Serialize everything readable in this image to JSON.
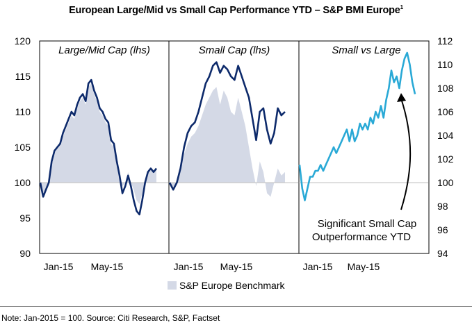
{
  "title": "European Large/Mid vs Small Cap Performance YTD – S&P BMI Europe",
  "title_sup": "1",
  "footnote": "Note: Jan-2015 = 100. Source: Citi Research, S&P, Factset",
  "colors": {
    "dark_line": "#0d2a6b",
    "light_line": "#29a9d6",
    "area": "#d4d9e6",
    "frame": "#000000",
    "baseline": "#bfbfbf"
  },
  "chart_data": [
    {
      "type": "line",
      "title": "Large/Mid Cap (lhs)",
      "xlabel": "",
      "ylabel": "",
      "ylim": [
        90,
        120
      ],
      "yticks": [
        "90",
        "95",
        "100",
        "105",
        "110",
        "115",
        "120"
      ],
      "xticks": [
        "Jan-15",
        "May-15"
      ],
      "series": [
        {
          "name": "Large/Mid Cap",
          "values": [
            100,
            98,
            99,
            100,
            103,
            104.5,
            105,
            105.5,
            107,
            108,
            109,
            110,
            109.5,
            111,
            112,
            112.5,
            111.5,
            114,
            114.5,
            113,
            112,
            110.5,
            110,
            109,
            108.5,
            106,
            105.5,
            103,
            101,
            98.5,
            99.5,
            101,
            99.5,
            97.5,
            96,
            95.5,
            97.5,
            100,
            101.5,
            102,
            101.5,
            102
          ]
        },
        {
          "name": "S&P Europe Benchmark",
          "kind": "area",
          "values": [
            100,
            98.5,
            99,
            100.5,
            102.5,
            104,
            105,
            105.5,
            106.5,
            107.5,
            108.5,
            109.5,
            109,
            110.5,
            111.5,
            112,
            111,
            113.5,
            114,
            112.5,
            111.5,
            110,
            109.5,
            108.5,
            108,
            105.5,
            105,
            102.5,
            101,
            99.5,
            100,
            101.5,
            100,
            99,
            97.5,
            97,
            98.5,
            100.5,
            101.5,
            102,
            101.5,
            102
          ]
        }
      ]
    },
    {
      "type": "line",
      "title": "Small Cap (lhs)",
      "xlabel": "",
      "ylabel": "",
      "ylim": [
        90,
        120
      ],
      "xticks": [
        "Jan-15",
        "May-15"
      ],
      "series": [
        {
          "name": "Small Cap",
          "values": [
            100,
            99,
            100,
            102,
            105,
            107,
            108,
            108.5,
            110,
            112,
            114,
            115,
            116.5,
            117,
            115.5,
            116.5,
            116,
            115,
            114.5,
            116.5,
            115,
            113.5,
            112,
            109,
            106,
            110,
            110.5,
            107.5,
            105.5,
            107,
            110.5,
            109.5,
            110
          ]
        },
        {
          "name": "S&P Europe Benchmark",
          "kind": "area",
          "values": [
            100,
            99,
            100,
            101.5,
            104,
            105.5,
            106.5,
            107,
            108,
            109.5,
            111,
            112,
            113,
            113.5,
            111,
            113,
            112,
            110,
            109.5,
            112,
            110,
            108,
            105,
            102,
            99.5,
            103,
            101.5,
            98.5,
            98,
            100,
            102,
            101,
            101.5
          ]
        }
      ]
    },
    {
      "type": "line",
      "title": "Small vs Large",
      "xlabel": "",
      "ylabel": "",
      "ylim": [
        94,
        112
      ],
      "yticks": [
        "94",
        "96",
        "98",
        "100",
        "102",
        "104",
        "106",
        "108",
        "110",
        "112"
      ],
      "xticks": [
        "Jan-15",
        "May-15"
      ],
      "annotation": [
        "Significant Small Cap",
        "Outperformance YTD"
      ],
      "series": [
        {
          "name": "Small vs Large",
          "values": [
            101.5,
            99.5,
            98.5,
            99.5,
            100.5,
            100.5,
            101,
            101,
            101.5,
            101,
            101.5,
            102,
            102.5,
            103,
            102.5,
            103,
            103.5,
            104,
            104.5,
            103.5,
            104.5,
            103.5,
            104,
            105,
            104.5,
            105,
            104.5,
            105.5,
            105,
            106,
            105.5,
            106.5,
            105.5,
            107,
            108,
            109.5,
            108.5,
            109,
            108,
            109.5,
            110.5,
            111,
            110,
            108.5,
            107.5
          ]
        }
      ]
    }
  ],
  "legend": {
    "label": "S&P Europe Benchmark",
    "position": "bottom"
  }
}
